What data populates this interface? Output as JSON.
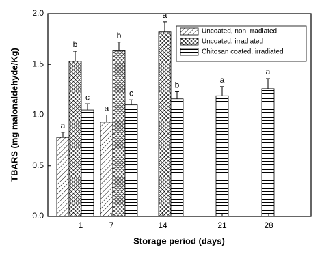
{
  "chart_data": {
    "type": "bar",
    "ylabel": "TBARS (mg malonaldehyde/Kg)",
    "xlabel": "Storage period (days)",
    "categories": [
      "1",
      "7",
      "14",
      "21",
      "28"
    ],
    "ylim": [
      0,
      2.0
    ],
    "yticks": [
      {
        "value": 0,
        "label": "0.0"
      },
      0.5,
      {
        "value": 1,
        "label": "1.0"
      },
      1.5,
      {
        "value": 2,
        "label": "2.0"
      }
    ],
    "color": "#000000",
    "series": [
      {
        "name": "Uncoated, non-irradiated",
        "values": [
          0.78,
          0.93,
          null,
          null,
          null
        ],
        "errors": [
          0.05,
          0.07,
          null,
          null,
          null
        ],
        "letters": [
          "a",
          "a",
          null,
          null,
          null
        ]
      },
      {
        "name": "Uncoated, irradiated",
        "values": [
          1.53,
          1.64,
          1.82,
          null,
          null
        ],
        "errors": [
          0.1,
          0.08,
          0.1,
          null,
          null
        ],
        "letters": [
          "b",
          "b",
          "a",
          null,
          null
        ]
      },
      {
        "name": "Chitosan coated, irradiated",
        "values": [
          1.05,
          1.1,
          1.16,
          1.19,
          1.26
        ],
        "errors": [
          0.06,
          0.05,
          0.07,
          0.09,
          0.1
        ],
        "letters": [
          "c",
          "c",
          "b",
          "a",
          "a"
        ]
      }
    ]
  }
}
